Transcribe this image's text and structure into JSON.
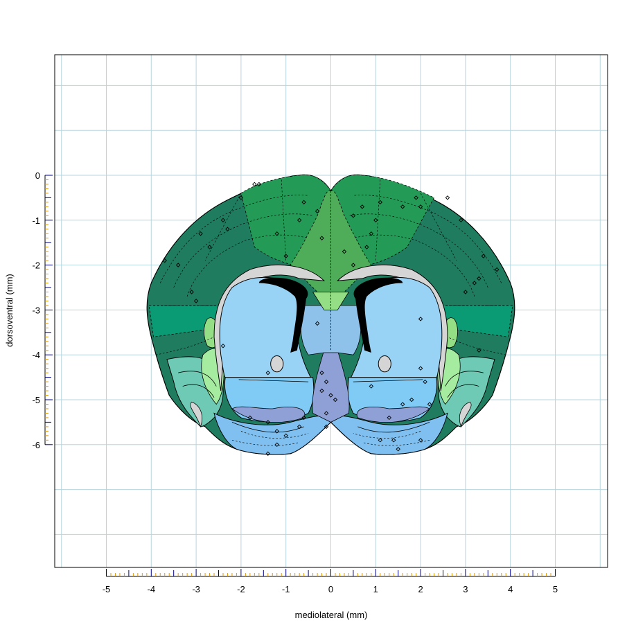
{
  "chart_data": {
    "type": "scatter",
    "title": "",
    "xlabel": "mediolateral (mm)",
    "ylabel": "dorsoventral (mm)",
    "xlim": [
      -6.2,
      6.2
    ],
    "ylim": [
      -8.8,
      2.7
    ],
    "x_ticks": [
      -5,
      -4,
      -3,
      -2,
      -1,
      0,
      1,
      2,
      3,
      4,
      5
    ],
    "x_tick_labels": [
      "-5",
      "-4",
      "-3",
      "-2",
      "-1",
      "0",
      "1",
      "2",
      "3",
      "4",
      "5"
    ],
    "y_ticks": [
      0,
      -1,
      -2,
      -3,
      -4,
      -5,
      -6
    ],
    "y_tick_labels": [
      "0",
      "-1",
      "-2",
      "-3",
      "-4",
      "-5",
      "-6"
    ],
    "grid": true,
    "grid_step_mm": 1,
    "grid_color": "#b7d5dd",
    "minor_tick_color": "#e69a00",
    "major_tick_color": "#00008b",
    "region_colors": {
      "isocortex_dark": "#1f7c5f",
      "isocortex_mid": "#239a55",
      "isocortex_medial": "#4fad5a",
      "cortex_teal": "#0b9b74",
      "olfactory": "#6ecab4",
      "claustrum_light": "#a6eca0",
      "hippocampal_light": "#94df86",
      "fiber_tracts": "#d5d5d5",
      "ventricle": "#000000",
      "striatum_dorsal": "#98d2f5",
      "striatum_ventral": "#80cbf5",
      "pallidum": "#8fa0d6",
      "septum": "#8fc2ea",
      "olfactory_tubercle": "#7fc0f0"
    },
    "series": [
      {
        "marker": "open-diamond",
        "color": "#000000",
        "points": [
          {
            "x": -1.7,
            "y": -0.2
          },
          {
            "x": -1.6,
            "y": -0.2
          },
          {
            "x": -2.0,
            "y": -0.5
          },
          {
            "x": -2.4,
            "y": -1.0
          },
          {
            "x": -2.3,
            "y": -1.2
          },
          {
            "x": -2.9,
            "y": -1.3
          },
          {
            "x": -2.7,
            "y": -1.6
          },
          {
            "x": -3.4,
            "y": -2.0
          },
          {
            "x": -3.7,
            "y": -1.9
          },
          {
            "x": -3.1,
            "y": -2.6
          },
          {
            "x": -3.0,
            "y": -2.8
          },
          {
            "x": -0.6,
            "y": -0.6
          },
          {
            "x": -0.3,
            "y": -0.8
          },
          {
            "x": -0.7,
            "y": -1.0
          },
          {
            "x": -1.2,
            "y": -1.3
          },
          {
            "x": -1.0,
            "y": -1.8
          },
          {
            "x": -0.2,
            "y": -1.4
          },
          {
            "x": -0.7,
            "y": -3.0
          },
          {
            "x": -0.3,
            "y": -3.3
          },
          {
            "x": -2.4,
            "y": -3.8
          },
          {
            "x": -1.4,
            "y": -4.4
          },
          {
            "x": -0.2,
            "y": -4.4
          },
          {
            "x": -0.1,
            "y": -4.6
          },
          {
            "x": -0.2,
            "y": -4.8
          },
          {
            "x": 0.0,
            "y": -4.9
          },
          {
            "x": 0.1,
            "y": -5.0
          },
          {
            "x": -0.1,
            "y": -5.3
          },
          {
            "x": -0.1,
            "y": -5.6
          },
          {
            "x": -1.8,
            "y": -5.4
          },
          {
            "x": -1.4,
            "y": -5.5
          },
          {
            "x": -1.2,
            "y": -5.7
          },
          {
            "x": -1.0,
            "y": -5.8
          },
          {
            "x": -0.7,
            "y": -5.6
          },
          {
            "x": -0.6,
            "y": -5.4
          },
          {
            "x": -1.2,
            "y": -6.0
          },
          {
            "x": -1.4,
            "y": -6.2
          },
          {
            "x": 0.7,
            "y": -0.7
          },
          {
            "x": 0.5,
            "y": -0.9
          },
          {
            "x": 0.9,
            "y": -1.3
          },
          {
            "x": 0.3,
            "y": -1.7
          },
          {
            "x": 0.8,
            "y": -1.6
          },
          {
            "x": 0.5,
            "y": -2.0
          },
          {
            "x": 1.1,
            "y": -0.6
          },
          {
            "x": 1.0,
            "y": -1.0
          },
          {
            "x": 1.6,
            "y": -0.7
          },
          {
            "x": 1.9,
            "y": -0.5
          },
          {
            "x": 2.0,
            "y": -0.7
          },
          {
            "x": 2.6,
            "y": -0.5
          },
          {
            "x": 2.9,
            "y": -1.0
          },
          {
            "x": 3.4,
            "y": -1.8
          },
          {
            "x": 3.3,
            "y": -2.3
          },
          {
            "x": 3.7,
            "y": -2.1
          },
          {
            "x": 3.0,
            "y": -2.6
          },
          {
            "x": 3.2,
            "y": -2.4
          },
          {
            "x": 2.0,
            "y": -3.2
          },
          {
            "x": 3.3,
            "y": -3.9
          },
          {
            "x": 2.0,
            "y": -4.3
          },
          {
            "x": 2.1,
            "y": -4.6
          },
          {
            "x": 0.9,
            "y": -4.7
          },
          {
            "x": 1.6,
            "y": -5.1
          },
          {
            "x": 1.8,
            "y": -5.0
          },
          {
            "x": 2.2,
            "y": -5.1
          },
          {
            "x": 1.3,
            "y": -5.4
          },
          {
            "x": 1.4,
            "y": -5.9
          },
          {
            "x": 1.5,
            "y": -6.1
          },
          {
            "x": 2.0,
            "y": -5.9
          },
          {
            "x": 1.1,
            "y": -5.9
          }
        ]
      }
    ]
  }
}
